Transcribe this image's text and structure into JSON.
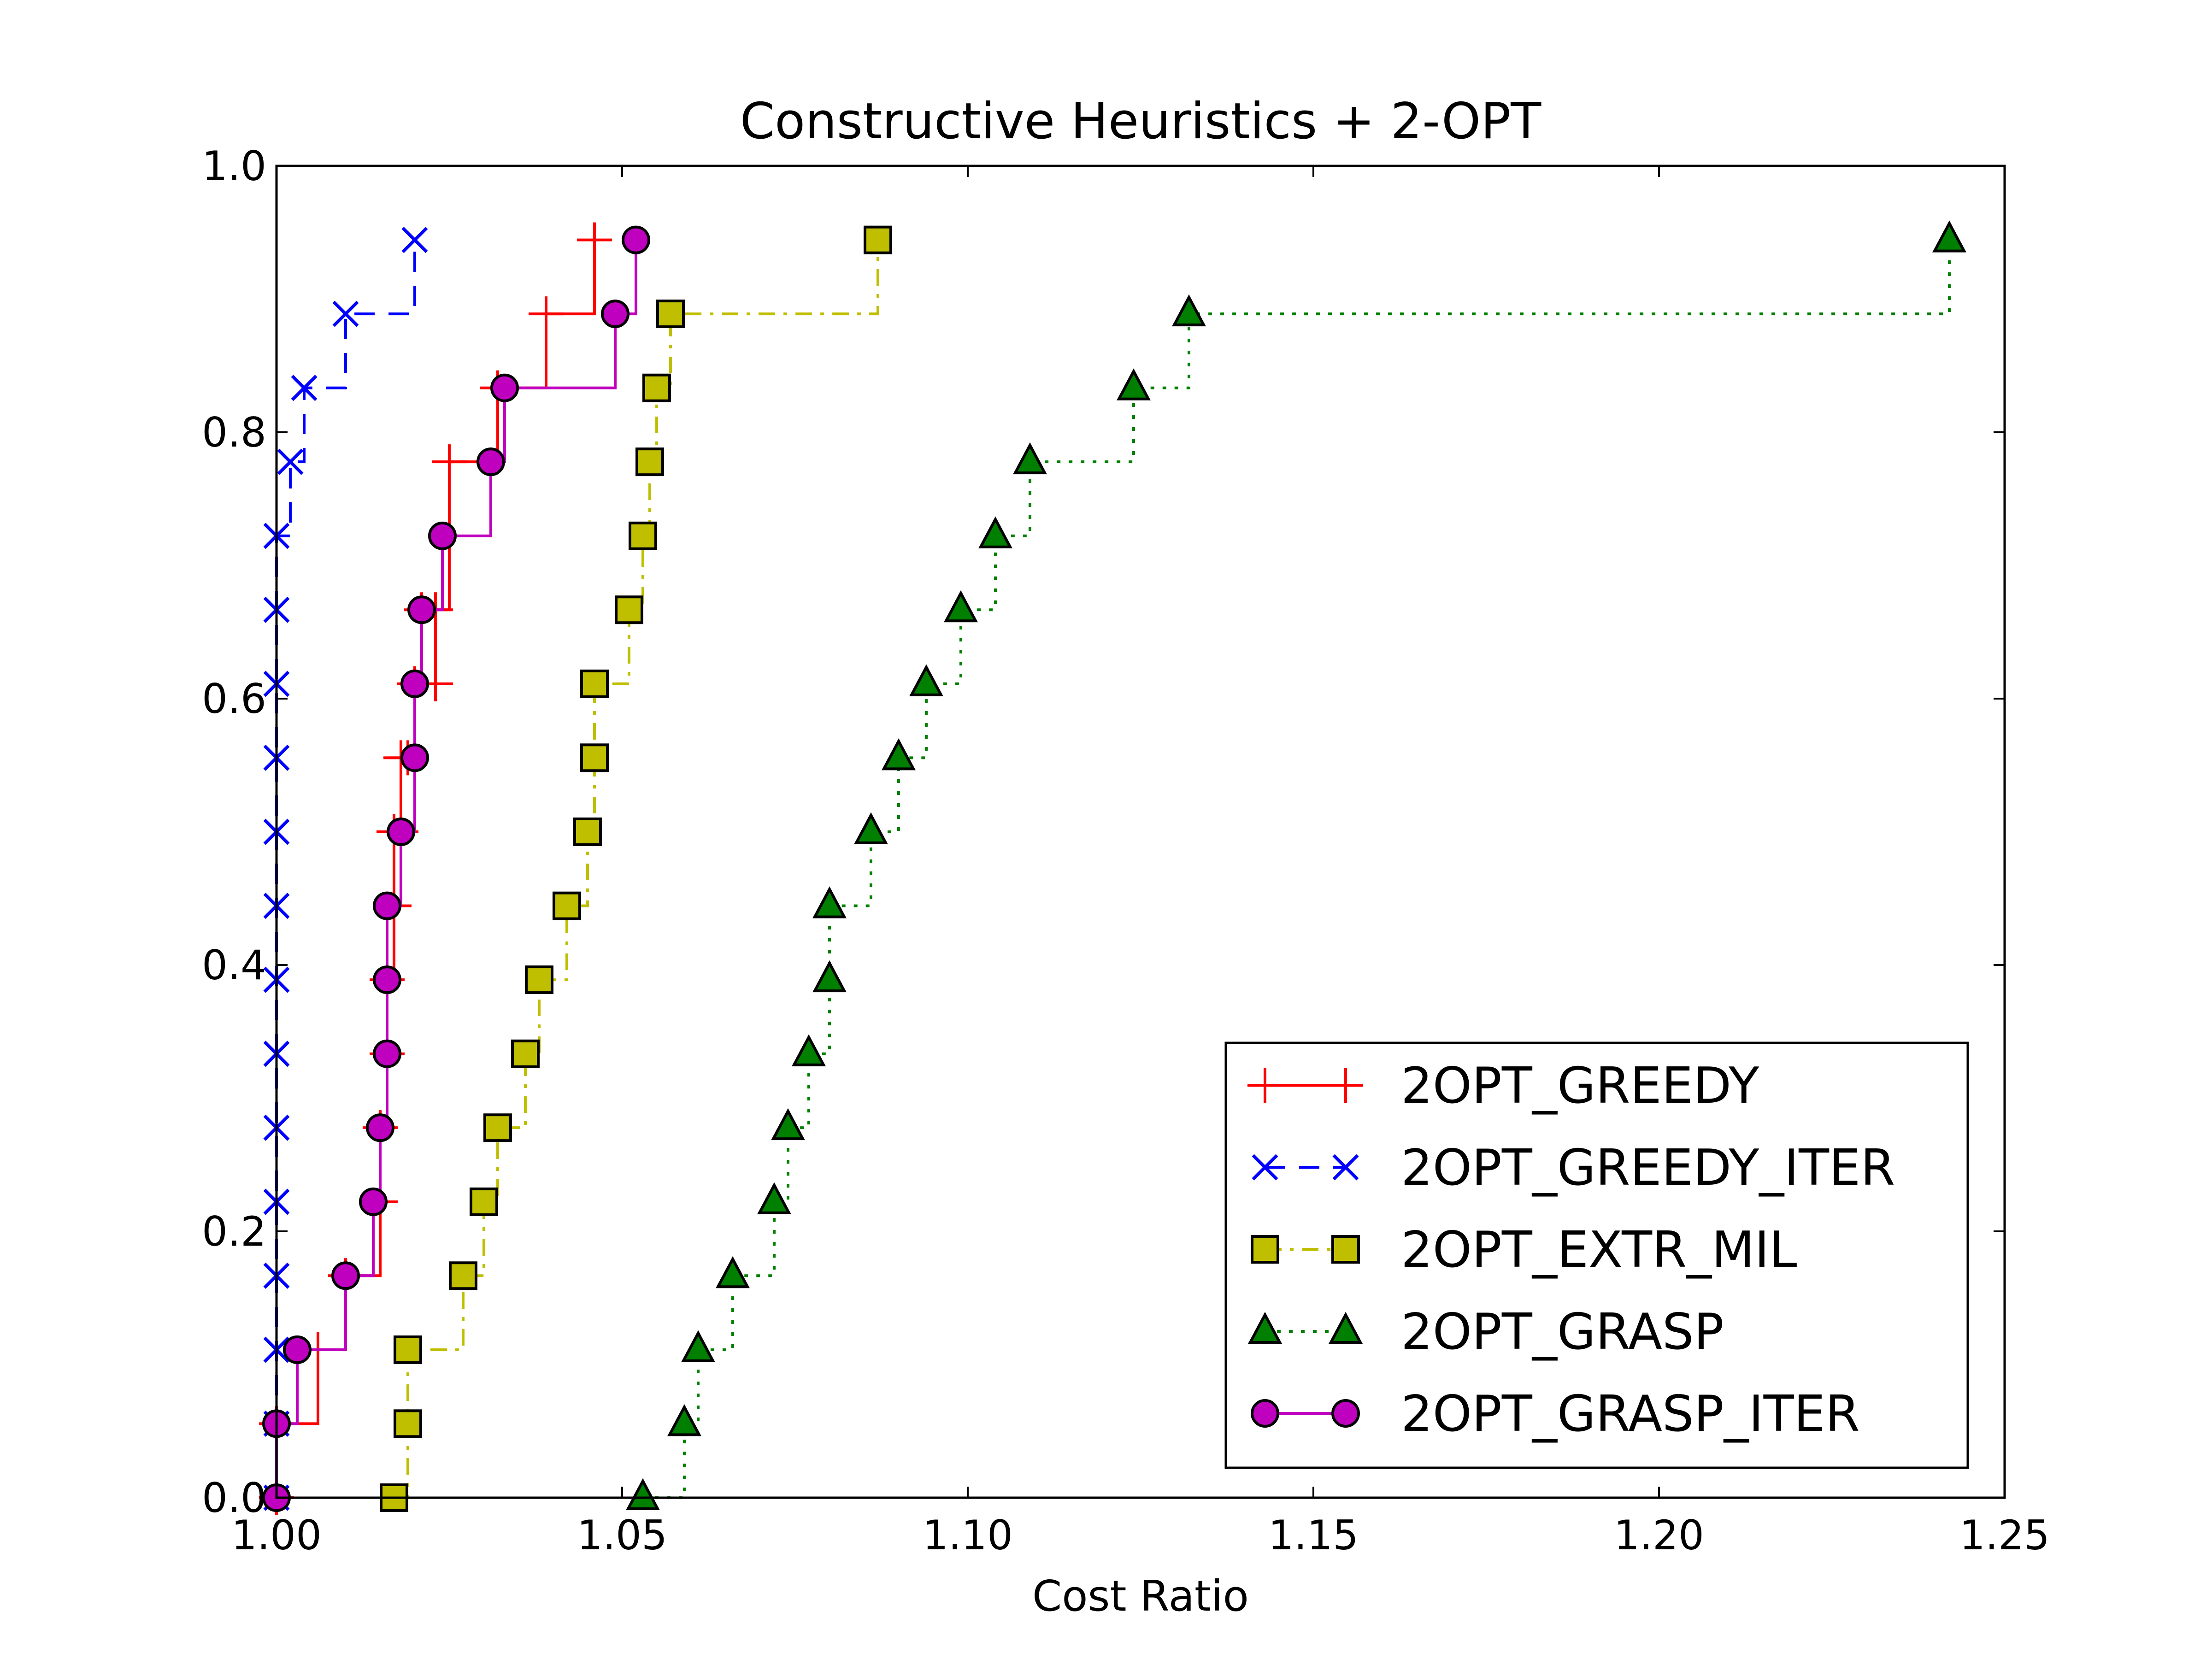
{
  "chart_data": {
    "type": "line",
    "title": "Constructive Heuristics + 2-OPT",
    "xlabel": "Cost Ratio",
    "ylabel": "",
    "xlim": [
      1.0,
      1.25
    ],
    "ylim": [
      0.0,
      1.0
    ],
    "xticks": [
      "1.00",
      "1.05",
      "1.10",
      "1.15",
      "1.20",
      "1.25"
    ],
    "yticks": [
      "0.0",
      "0.2",
      "0.4",
      "0.6",
      "0.8",
      "1.0"
    ],
    "grid": false,
    "legend_position": "lower-right",
    "drawstyle": "steps-post",
    "series": [
      {
        "name": "2OPT_GREEDY",
        "color": "#ff0000",
        "linestyle": "solid",
        "marker": "plus",
        "x": [
          1.0,
          1.0,
          1.006,
          1.01,
          1.015,
          1.015,
          1.016,
          1.016,
          1.017,
          1.017,
          1.018,
          1.018,
          1.019,
          1.02,
          1.021,
          1.023,
          1.023,
          1.025,
          1.032,
          1.039,
          1.046
        ],
        "y": [
          0.0,
          0.0556,
          0.1111,
          0.1667,
          0.2222,
          0.2778,
          0.3333,
          0.3889,
          0.4444,
          0.5,
          0.5,
          0.5556,
          0.5556,
          0.6111,
          0.6667,
          0.6111,
          0.6667,
          0.7778,
          0.8333,
          0.8889,
          0.9444
        ]
      },
      {
        "name": "2OPT_GREEDY_ITER",
        "color": "#0000ff",
        "linestyle": "dashed",
        "marker": "x",
        "x": [
          1.0,
          1.0,
          1.0,
          1.0,
          1.0,
          1.0,
          1.0,
          1.0,
          1.0,
          1.0,
          1.0,
          1.0,
          1.0,
          1.0,
          1.002,
          1.004,
          1.01,
          1.02
        ],
        "y": [
          0.0,
          0.0556,
          0.1111,
          0.1667,
          0.2222,
          0.2778,
          0.3333,
          0.3889,
          0.4444,
          0.5,
          0.5556,
          0.6111,
          0.6667,
          0.7222,
          0.7778,
          0.8333,
          0.8889,
          0.9444
        ]
      },
      {
        "name": "2OPT_EXTR_MIL",
        "color": "#bfbf00",
        "linestyle": "dashdot",
        "marker": "square",
        "x": [
          1.017,
          1.019,
          1.019,
          1.027,
          1.03,
          1.032,
          1.036,
          1.038,
          1.042,
          1.045,
          1.046,
          1.046,
          1.051,
          1.053,
          1.054,
          1.055,
          1.057,
          1.087
        ],
        "y": [
          0.0,
          0.0556,
          0.1111,
          0.1667,
          0.2222,
          0.2778,
          0.3333,
          0.3889,
          0.4444,
          0.5,
          0.5556,
          0.6111,
          0.6667,
          0.7222,
          0.7778,
          0.8333,
          0.8889,
          0.9444
        ]
      },
      {
        "name": "2OPT_GRASP",
        "color": "#007f00",
        "linestyle": "dotted",
        "marker": "triangle",
        "x": [
          1.053,
          1.059,
          1.061,
          1.066,
          1.072,
          1.074,
          1.077,
          1.08,
          1.08,
          1.086,
          1.09,
          1.094,
          1.099,
          1.104,
          1.109,
          1.124,
          1.132,
          1.242
        ],
        "y": [
          0.0,
          0.0556,
          0.1111,
          0.1667,
          0.2222,
          0.2778,
          0.3333,
          0.3889,
          0.4444,
          0.5,
          0.5556,
          0.6111,
          0.6667,
          0.7222,
          0.7778,
          0.8333,
          0.8889,
          0.9444
        ]
      },
      {
        "name": "2OPT_GRASP_ITER",
        "color": "#bf00bf",
        "linestyle": "solid",
        "marker": "circle",
        "x": [
          1.0,
          1.0,
          1.003,
          1.01,
          1.014,
          1.015,
          1.016,
          1.016,
          1.016,
          1.018,
          1.02,
          1.02,
          1.021,
          1.024,
          1.031,
          1.033,
          1.049,
          1.052
        ],
        "y": [
          0.0,
          0.0556,
          0.1111,
          0.1667,
          0.2222,
          0.2778,
          0.3333,
          0.3889,
          0.4444,
          0.5,
          0.5556,
          0.6111,
          0.6667,
          0.7222,
          0.7778,
          0.8333,
          0.8889,
          0.9444
        ]
      }
    ]
  }
}
